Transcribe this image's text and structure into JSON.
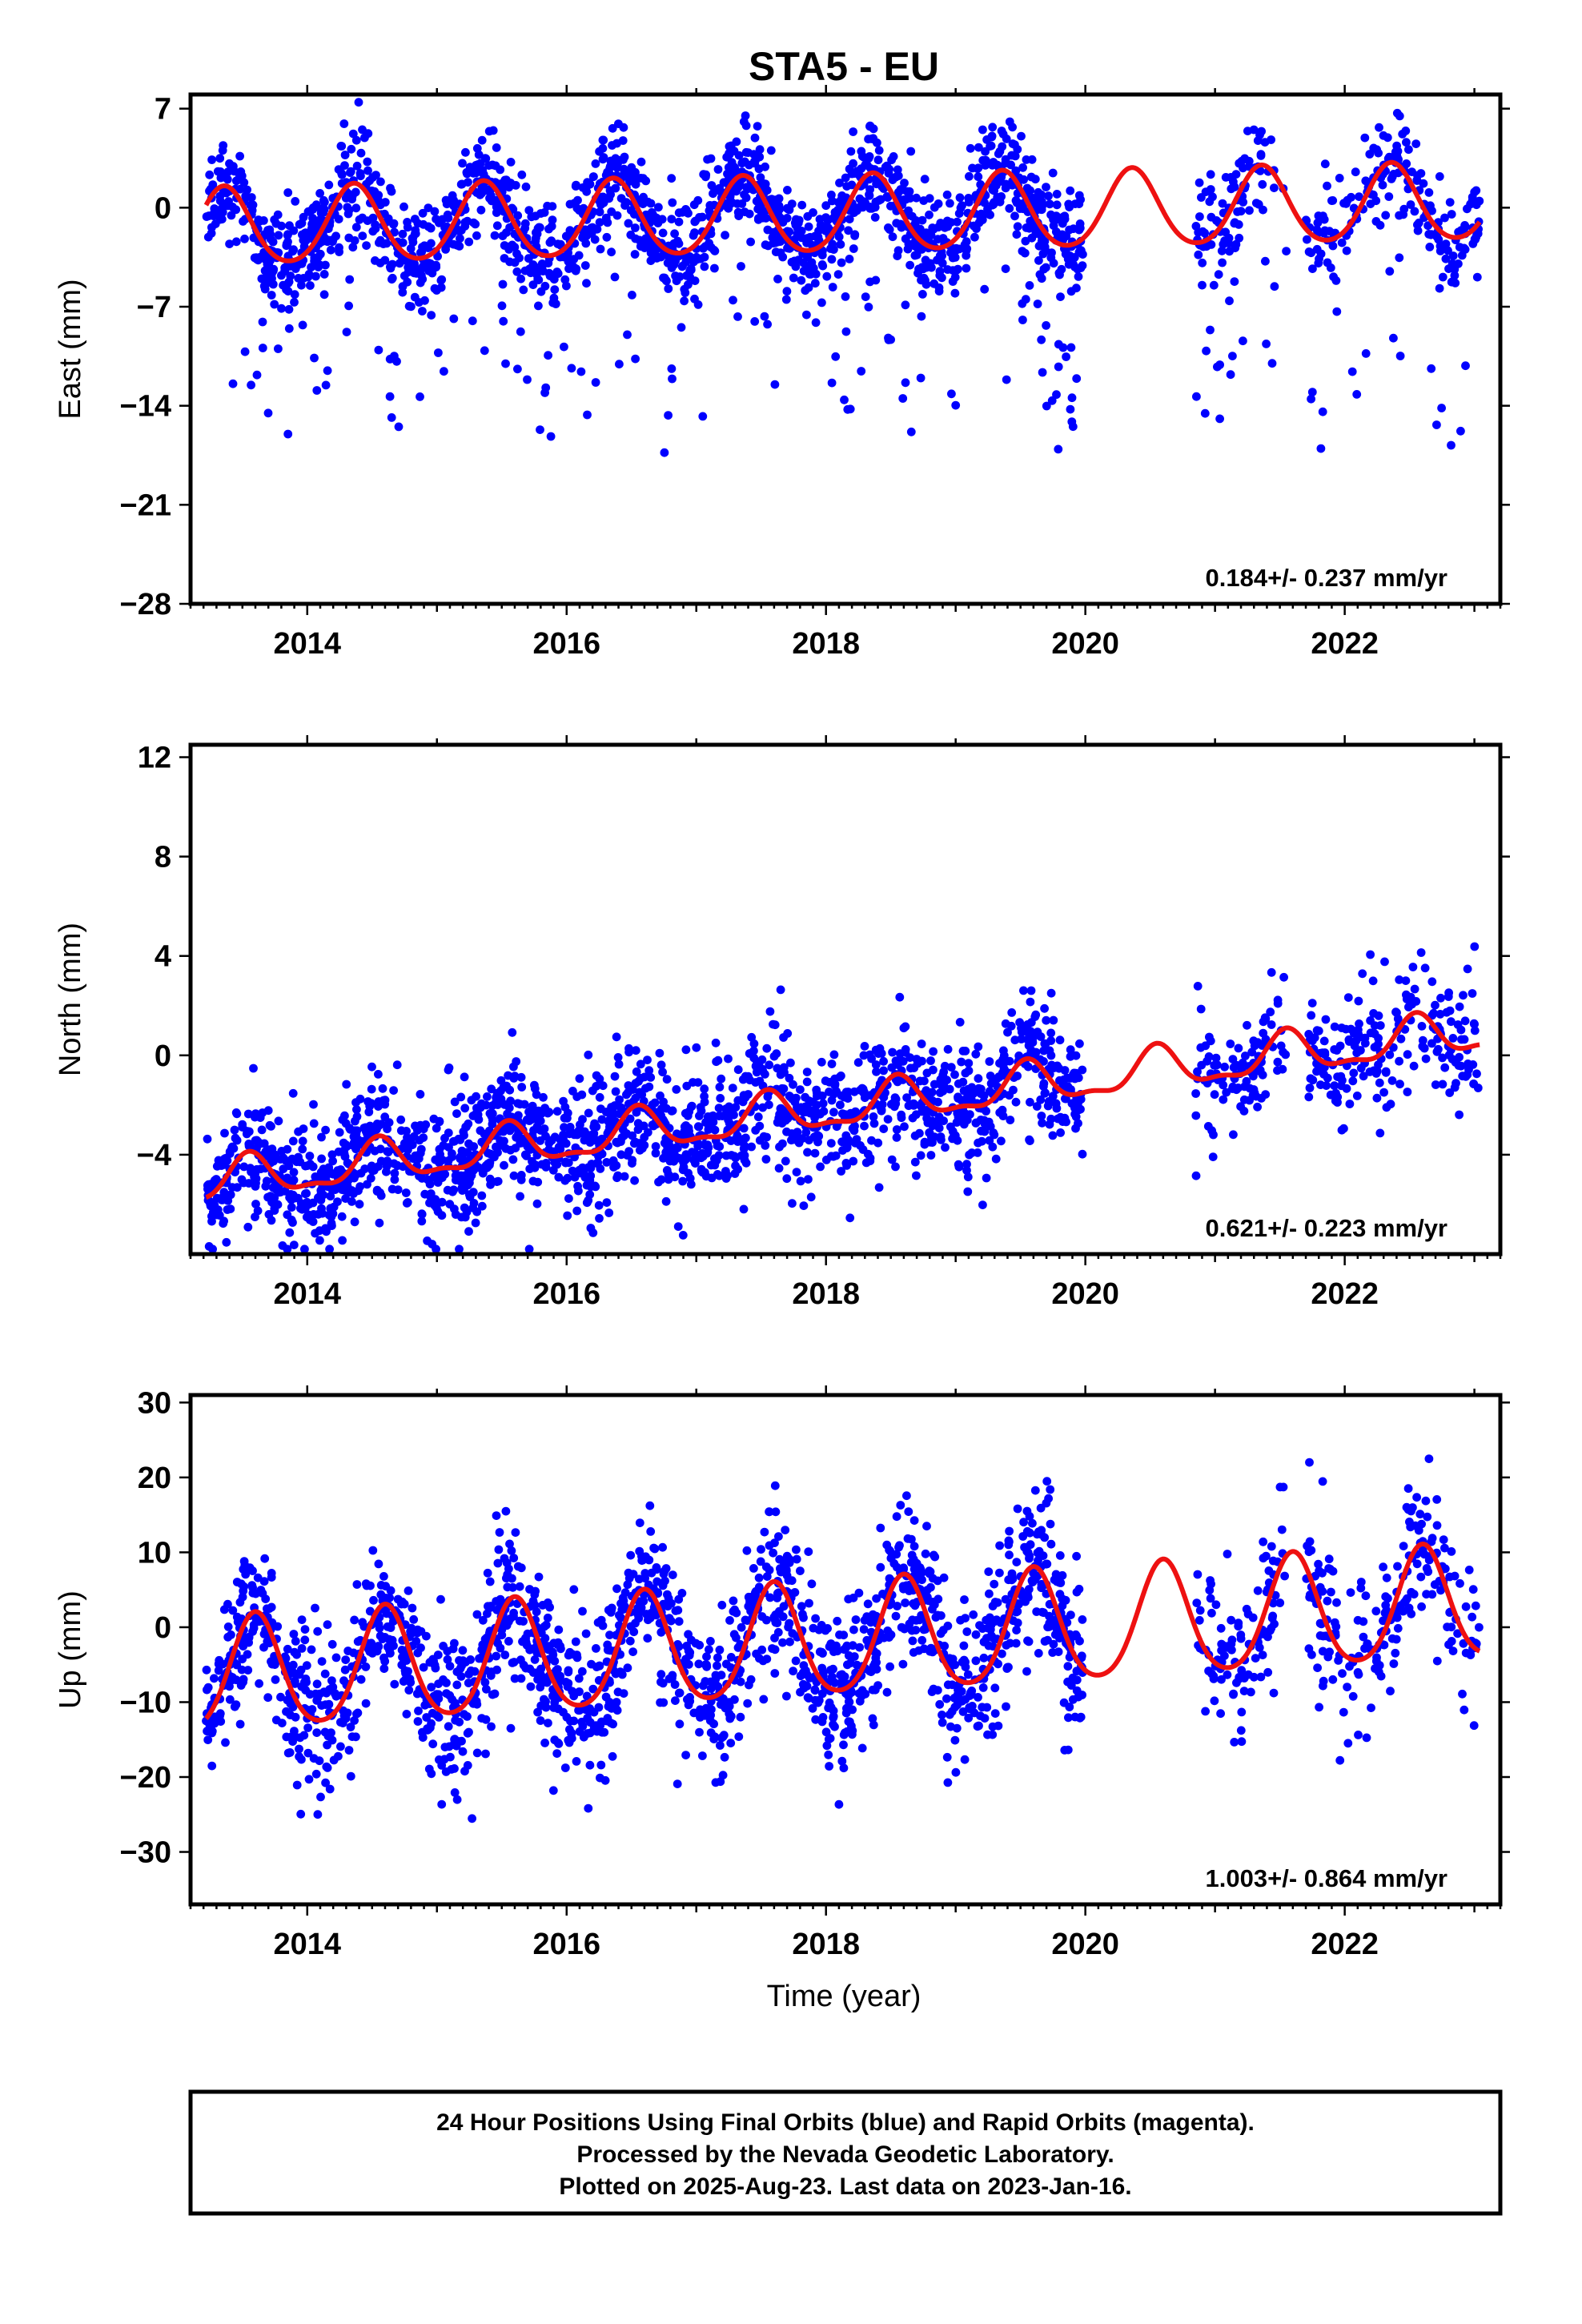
{
  "figure": {
    "title": "STA5 - EU",
    "xlabel": "Time (year)",
    "colors": {
      "points": "#0000ff",
      "model": "#ee1111",
      "frame": "#000000"
    }
  },
  "chart_data": [
    {
      "type": "scatter",
      "component": "east",
      "ylabel": "East (mm)",
      "xlim": [
        2013.1,
        2023.2
      ],
      "ylim": [
        -28,
        8
      ],
      "xticks": [
        2014,
        2016,
        2018,
        2020,
        2022
      ],
      "yticks": [
        7,
        0,
        -7,
        -14,
        -21,
        -28
      ],
      "grid": false,
      "rate_text": "0.184+/- 0.237 mm/yr",
      "model": {
        "name": "",
        "offset": -0.6,
        "rate_mm_per_yr": 0.184,
        "annual_amplitude": 2.7,
        "annual_peak_phase": 0.36,
        "semiannual_amplitude": 0.3
      },
      "series": [
        {
          "name": "",
          "color": "#0000ff",
          "noise_sd": 1.8,
          "outlier_rate": 0.07,
          "outlier_direction": "negative",
          "outlier_max": 26.9
        }
      ],
      "coverage": [
        [
          2013.22,
          2019.98
        ],
        [
          2020.85,
          2021.55
        ],
        [
          2021.7,
          2023.04
        ]
      ]
    },
    {
      "type": "scatter",
      "component": "north",
      "ylabel": "North (mm)",
      "xlim": [
        2013.1,
        2023.2
      ],
      "ylim": [
        -8,
        12.5
      ],
      "xticks": [
        2014,
        2016,
        2018,
        2020,
        2022
      ],
      "yticks": [
        12,
        8,
        4,
        0,
        -4
      ],
      "grid": false,
      "rate_text": "0.621+/- 0.223 mm/yr",
      "model": {
        "name": "",
        "offset": -2.2,
        "rate_mm_per_yr": 0.621,
        "annual_amplitude": 0.8,
        "annual_peak_phase": 0.55,
        "semiannual_amplitude": 0.3
      },
      "series": [
        {
          "name": "",
          "color": "#0000ff",
          "noise_sd": 1.2,
          "outlier_rate": 0.04,
          "outlier_direction": "both",
          "outlier_max": 7.5
        }
      ],
      "coverage": [
        [
          2013.22,
          2019.98
        ],
        [
          2020.85,
          2021.55
        ],
        [
          2021.7,
          2023.04
        ]
      ]
    },
    {
      "type": "scatter",
      "component": "up",
      "ylabel": "Up (mm)",
      "xlim": [
        2013.1,
        2023.2
      ],
      "ylim": [
        -37,
        31
      ],
      "xticks": [
        2014,
        2016,
        2018,
        2020,
        2022
      ],
      "yticks": [
        30,
        20,
        10,
        0,
        -10,
        -20,
        -30
      ],
      "grid": false,
      "rate_text": "1.003+/- 0.864 mm/yr",
      "model": {
        "name": "",
        "offset": -2.0,
        "rate_mm_per_yr": 1.003,
        "annual_amplitude": 7.5,
        "annual_peak_phase": 0.6,
        "semiannual_amplitude": 1.0
      },
      "series": [
        {
          "name": "",
          "color": "#0000ff",
          "noise_sd": 4.8,
          "outlier_rate": 0.05,
          "outlier_direction": "both",
          "outlier_max": 28
        }
      ],
      "coverage": [
        [
          2013.22,
          2019.98
        ],
        [
          2020.85,
          2021.55
        ],
        [
          2021.7,
          2023.04
        ]
      ]
    }
  ],
  "footer": {
    "lines": [
      "24 Hour Positions Using Final Orbits (blue) and Rapid Orbits (magenta).",
      "Processed by the Nevada Geodetic Laboratory.",
      "Plotted on 2025-Aug-23. Last data on 2023-Jan-16."
    ]
  }
}
